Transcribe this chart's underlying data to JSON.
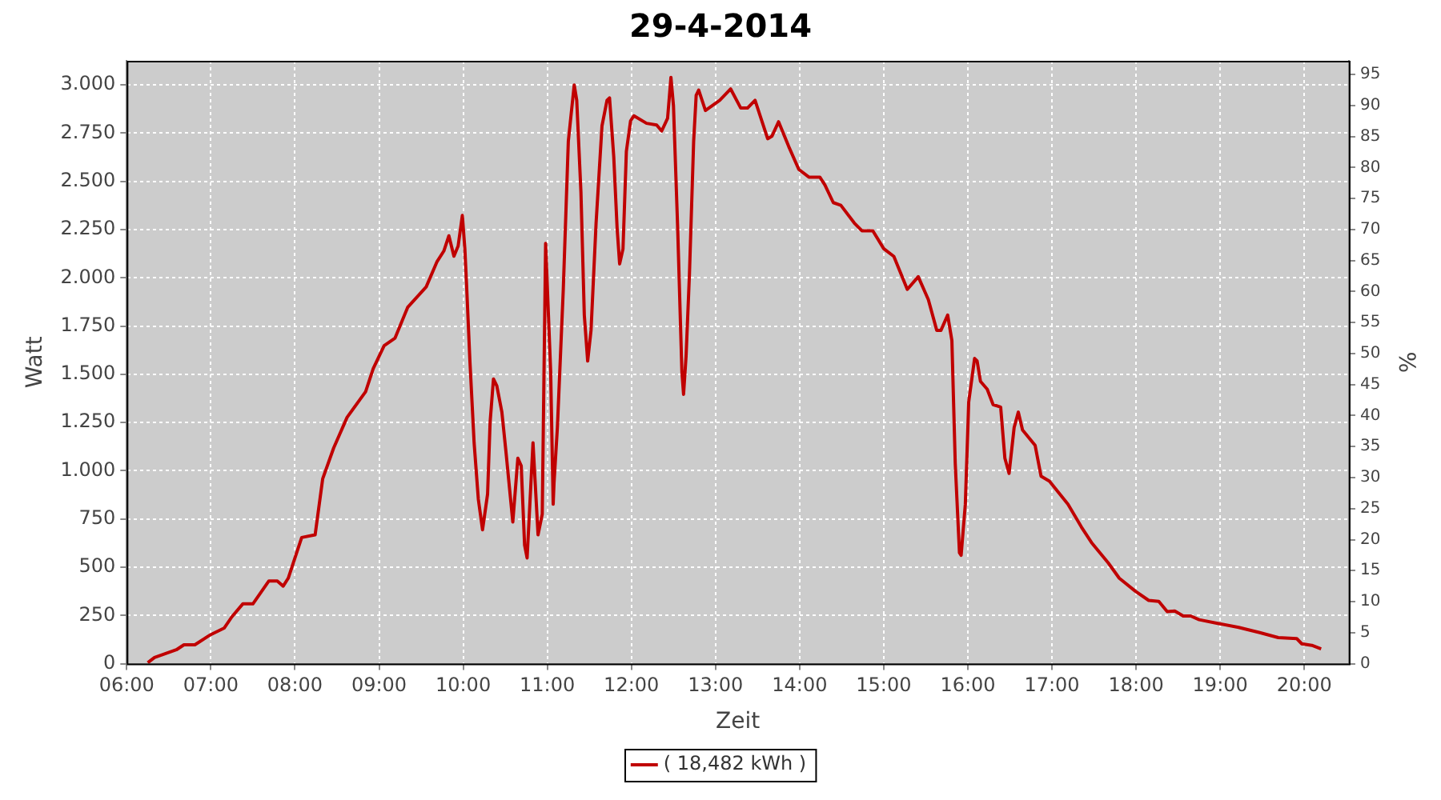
{
  "chart_data": {
    "type": "line",
    "title": "29-4-2014",
    "xlabel": "Zeit",
    "ylabel": "Watt",
    "y2label": "%",
    "xlim": [
      6,
      20.53
    ],
    "xticks": [
      {
        "value": 6,
        "label": "06:00"
      },
      {
        "value": 7,
        "label": "07:00"
      },
      {
        "value": 8,
        "label": "08:00"
      },
      {
        "value": 9,
        "label": "09:00"
      },
      {
        "value": 10,
        "label": "10:00"
      },
      {
        "value": 11,
        "label": "11:00"
      },
      {
        "value": 12,
        "label": "12:00"
      },
      {
        "value": 13,
        "label": "13:00"
      },
      {
        "value": 14,
        "label": "14:00"
      },
      {
        "value": 15,
        "label": "15:00"
      },
      {
        "value": 16,
        "label": "16:00"
      },
      {
        "value": 17,
        "label": "17:00"
      },
      {
        "value": 18,
        "label": "18:00"
      },
      {
        "value": 19,
        "label": "19:00"
      },
      {
        "value": 20,
        "label": "20:00"
      }
    ],
    "ylim": [
      0,
      3125
    ],
    "yticks": [
      0,
      250,
      500,
      750,
      {
        "value": 1000,
        "label": "1.000"
      },
      {
        "value": 1250,
        "label": "1.250"
      },
      {
        "value": 1500,
        "label": "1.500"
      },
      {
        "value": 1750,
        "label": "1.750"
      },
      {
        "value": 2000,
        "label": "2.000"
      },
      {
        "value": 2250,
        "label": "2.250"
      },
      {
        "value": 2500,
        "label": "2.500"
      },
      {
        "value": 2750,
        "label": "2.750"
      },
      {
        "value": 3000,
        "label": "3.000"
      }
    ],
    "y2lim": [
      0,
      97.2
    ],
    "y2ticks": [
      0,
      5,
      10,
      15,
      20,
      25,
      30,
      35,
      40,
      45,
      50,
      55,
      60,
      65,
      70,
      75,
      80,
      85,
      90,
      95
    ],
    "grid": true,
    "legend": "bottom",
    "marker": "none",
    "line_style": "solid",
    "series": [
      {
        "name": "( 18,482 kWh )",
        "color": "#c00000",
        "x": [
          6.25,
          6.33,
          6.59,
          6.68,
          6.81,
          7.0,
          7.16,
          7.25,
          7.38,
          7.5,
          7.69,
          7.79,
          7.86,
          7.92,
          8.08,
          8.24,
          8.33,
          8.46,
          8.62,
          8.84,
          8.93,
          9.06,
          9.19,
          9.34,
          9.56,
          9.69,
          9.77,
          9.83,
          9.89,
          9.94,
          9.99,
          10.02,
          10.04,
          10.08,
          10.13,
          10.18,
          10.23,
          10.29,
          10.32,
          10.36,
          10.4,
          10.46,
          10.51,
          10.59,
          10.65,
          10.69,
          10.73,
          10.76,
          10.83,
          10.89,
          10.94,
          10.98,
          11.04,
          11.07,
          11.08,
          11.12,
          11.19,
          11.25,
          11.32,
          11.35,
          11.4,
          11.44,
          11.48,
          11.52,
          11.58,
          11.65,
          11.71,
          11.74,
          11.79,
          11.83,
          11.86,
          11.9,
          11.94,
          11.99,
          12.03,
          12.18,
          12.3,
          12.36,
          12.43,
          12.47,
          12.5,
          12.55,
          12.6,
          12.62,
          12.65,
          12.69,
          12.74,
          12.77,
          12.8,
          12.88,
          13.05,
          13.18,
          13.3,
          13.38,
          13.47,
          13.62,
          13.67,
          13.75,
          13.87,
          13.99,
          14.11,
          14.24,
          14.3,
          14.4,
          14.49,
          14.65,
          14.74,
          14.87,
          15.0,
          15.12,
          15.28,
          15.41,
          15.53,
          15.63,
          15.68,
          15.76,
          15.81,
          15.85,
          15.9,
          15.92,
          15.97,
          16.01,
          16.08,
          16.11,
          16.15,
          16.23,
          16.3,
          16.39,
          16.44,
          16.49,
          16.55,
          16.6,
          16.65,
          16.8,
          16.87,
          16.97,
          17.19,
          17.35,
          17.47,
          17.57,
          17.67,
          17.8,
          17.99,
          18.15,
          18.27,
          18.37,
          18.46,
          18.56,
          18.65,
          18.75,
          18.97,
          19.22,
          19.47,
          19.69,
          19.91,
          19.97,
          20.09,
          20.2
        ],
        "values": [
          5,
          32,
          72,
          98,
          98,
          151,
          185,
          243,
          310,
          310,
          429,
          429,
          402,
          443,
          654,
          668,
          959,
          1118,
          1277,
          1410,
          1529,
          1648,
          1688,
          1847,
          1953,
          2085,
          2139,
          2218,
          2112,
          2165,
          2324,
          2150,
          1966,
          1569,
          1145,
          853,
          694,
          879,
          1251,
          1476,
          1440,
          1304,
          1092,
          734,
          1065,
          1025,
          615,
          548,
          1145,
          668,
          775,
          2178,
          1515,
          827,
          937,
          1224,
          1940,
          2708,
          3000,
          2920,
          2443,
          1807,
          1569,
          1728,
          2284,
          2787,
          2920,
          2933,
          2628,
          2258,
          2072,
          2150,
          2655,
          2814,
          2840,
          2801,
          2792,
          2761,
          2827,
          3039,
          2893,
          2258,
          1515,
          1396,
          1595,
          2019,
          2708,
          2946,
          2973,
          2867,
          2920,
          2979,
          2880,
          2880,
          2920,
          2721,
          2734,
          2809,
          2681,
          2562,
          2522,
          2522,
          2482,
          2390,
          2376,
          2284,
          2244,
          2244,
          2151,
          2111,
          1940,
          2006,
          1887,
          1728,
          1728,
          1807,
          1675,
          1038,
          575,
          562,
          827,
          1356,
          1582,
          1569,
          1463,
          1423,
          1343,
          1330,
          1065,
          986,
          1224,
          1304,
          1211,
          1131,
          972,
          946,
          827,
          708,
          628,
          575,
          522,
          443,
          376,
          328,
          323,
          270,
          273,
          247,
          247,
          228,
          209,
          188,
          161,
          135,
          130,
          103,
          95,
          77
        ]
      }
    ]
  }
}
